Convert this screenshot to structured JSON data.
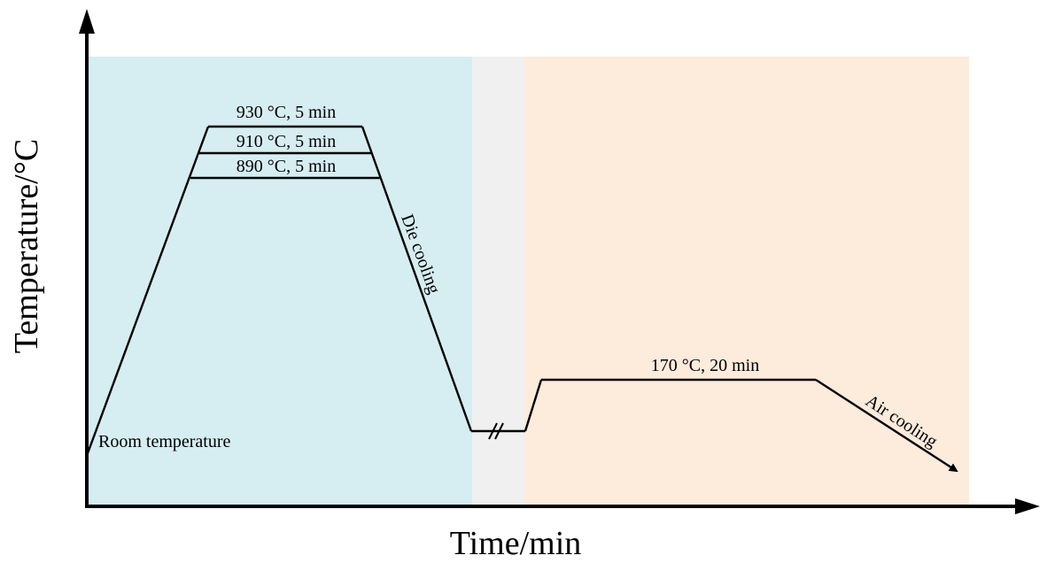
{
  "colors": {
    "solution_zone": "#d6edf2",
    "transfer_zone": "#f0f0f0",
    "aging_zone": "#fdebdc",
    "line": "#000000"
  },
  "labels": {
    "temp_930": "930 °C, 5 min",
    "temp_910": "910 °C, 5 min",
    "temp_890": "890 °C, 5 min",
    "die_cooling": "Die cooling",
    "room_temperature": "Room temperature",
    "aging": "170 °C, 20 min",
    "air_cooling": "Air cooling"
  },
  "axes": {
    "y_label": "Temperature/°C",
    "x_label": "Time/min"
  }
}
